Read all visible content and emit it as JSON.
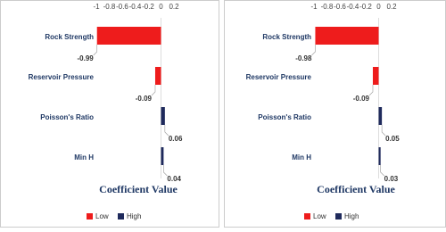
{
  "chart_data": [
    {
      "type": "bar",
      "orientation": "horizontal",
      "title": "Coefficient Value",
      "categories": [
        "Rock Strength",
        "Reservoir Pressure",
        "Poisson's Ratio",
        "Min H"
      ],
      "series": [
        {
          "name": "Low",
          "color": "#ee1c1c",
          "values": [
            -0.99,
            -0.09,
            null,
            null
          ]
        },
        {
          "name": "High",
          "color": "#1f2a5c",
          "values": [
            null,
            null,
            0.06,
            0.04
          ]
        }
      ],
      "xlim": [
        -1,
        0.2
      ],
      "xticks": [
        -1,
        -0.8,
        -0.6,
        -0.4,
        -0.2,
        0,
        0.2
      ]
    },
    {
      "type": "bar",
      "orientation": "horizontal",
      "title": "Coefficient Value",
      "categories": [
        "Rock Strength",
        "Reservoir Pressure",
        "Poisson's Ratio",
        "Min H"
      ],
      "series": [
        {
          "name": "Low",
          "color": "#ee1c1c",
          "values": [
            -0.98,
            -0.09,
            null,
            null
          ]
        },
        {
          "name": "High",
          "color": "#1f2a5c",
          "values": [
            null,
            null,
            0.05,
            0.03
          ]
        }
      ],
      "xlim": [
        -1,
        0.2
      ],
      "xticks": [
        -1,
        -0.8,
        -0.6,
        -0.4,
        -0.2,
        0,
        0.2
      ]
    }
  ]
}
